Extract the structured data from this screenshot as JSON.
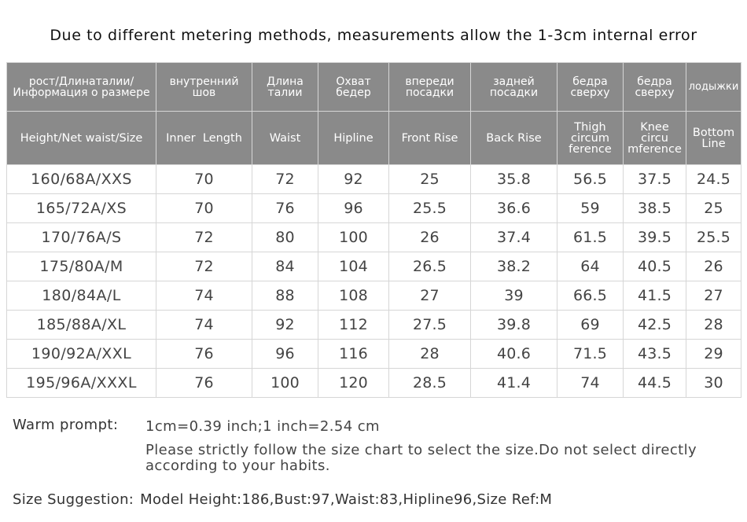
{
  "note": "Due to different metering methods, measurements allow the 1-3cm internal error",
  "table": {
    "headers_ru": [
      "рост/Длинаталии/ Информация о размере",
      "внутренний шов",
      "Длина талии",
      "Охват бедер",
      "впереди посадки",
      "задней посадки",
      "бедра сверху",
      "бедра сверху",
      "лодыжки"
    ],
    "headers_en": [
      "Height/Net waist/Size",
      "Inner  Length",
      "Waist",
      "Hipline",
      "Front Rise",
      "Back Rise",
      "Thigh circum ference",
      "Knee circu mference",
      "Bottom Line"
    ],
    "rows": [
      [
        "160/68A/XXS",
        "70",
        "72",
        "92",
        "25",
        "35.8",
        "56.5",
        "37.5",
        "24.5"
      ],
      [
        "165/72A/XS",
        "70",
        "76",
        "96",
        "25.5",
        "36.6",
        "59",
        "38.5",
        "25"
      ],
      [
        "170/76A/S",
        "72",
        "80",
        "100",
        "26",
        "37.4",
        "61.5",
        "39.5",
        "25.5"
      ],
      [
        "175/80A/M",
        "72",
        "84",
        "104",
        "26.5",
        "38.2",
        "64",
        "40.5",
        "26"
      ],
      [
        "180/84A/L",
        "74",
        "88",
        "108",
        "27",
        "39",
        "66.5",
        "41.5",
        "27"
      ],
      [
        "185/88A/XL",
        "74",
        "92",
        "112",
        "27.5",
        "39.8",
        "69",
        "42.5",
        "28"
      ],
      [
        "190/92A/XXL",
        "76",
        "96",
        "116",
        "28",
        "40.6",
        "71.5",
        "43.5",
        "29"
      ],
      [
        "195/96A/XXXL",
        "76",
        "100",
        "120",
        "28.5",
        "41.4",
        "74",
        "44.5",
        "30"
      ]
    ]
  },
  "warm_prompt": {
    "label": "Warm prompt:",
    "line1": "1cm=0.39 inch;1 inch=2.54 cm",
    "line2": "Please strictly follow the size chart  to select the size.Do not select directly according to your habits."
  },
  "size_suggestion": {
    "label": "Size Suggestion:",
    "text": "Model Height:186,Bust:97,Waist:83,Hipline96,Size Ref:M"
  },
  "colors": {
    "header_bg": "#8a8a8a",
    "header_text": "#ffffff",
    "border": "#d6d6d6"
  }
}
